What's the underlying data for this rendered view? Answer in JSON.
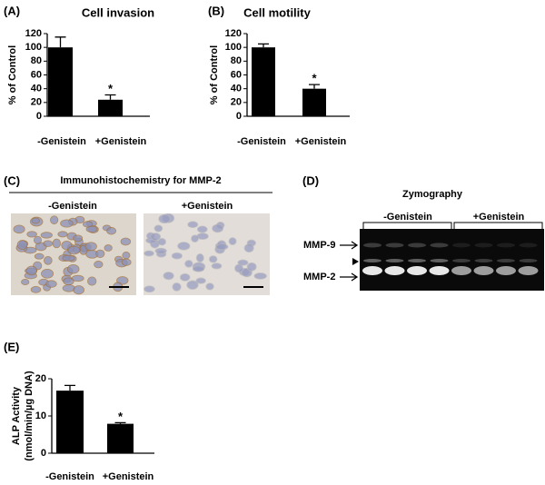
{
  "chart_data": [
    {
      "type": "bar",
      "label": "(A)",
      "title": "Cell invasion",
      "ylabel": [
        "% of Control"
      ],
      "categories": [
        "-Genistein",
        "+Genistein"
      ],
      "values": [
        100,
        24
      ],
      "errors": [
        15,
        7
      ],
      "significance": [
        null,
        "*"
      ],
      "color": "#000000",
      "ylim": [
        0,
        120
      ],
      "yticks": [
        0,
        20,
        40,
        60,
        80,
        100,
        120
      ]
    },
    {
      "type": "bar",
      "label": "(B)",
      "title": "Cell motility",
      "ylabel": [
        "% of Control"
      ],
      "categories": [
        "-Genistein",
        "+Genistein"
      ],
      "values": [
        100,
        40
      ],
      "errors": [
        5,
        6
      ],
      "significance": [
        null,
        "*"
      ],
      "color": "#000000",
      "ylim": [
        0,
        120
      ],
      "yticks": [
        0,
        20,
        40,
        60,
        80,
        100,
        120
      ]
    },
    {
      "type": "bar",
      "label": "(E)",
      "ylabel": [
        "ALP Activity",
        "(nmol/min/µg DNA)"
      ],
      "categories": [
        "-Genistein",
        "+Genistein"
      ],
      "values": [
        16.8,
        7.9
      ],
      "errors": [
        1.4,
        0.3
      ],
      "significance": [
        null,
        "*"
      ],
      "color": "#000000",
      "ylim": [
        0,
        20
      ],
      "yticks": [
        0,
        10,
        20
      ]
    }
  ],
  "panels": {
    "C": {
      "label": "(C)",
      "title": "Immunohistochemistry for MMP-2",
      "groups": [
        "-Genistein",
        "+Genistein"
      ]
    },
    "D": {
      "label": "(D)",
      "title": "Zymography",
      "groups": [
        "-Genistein",
        "+Genistein"
      ],
      "bands": [
        "MMP-9",
        "MMP-2"
      ]
    }
  }
}
